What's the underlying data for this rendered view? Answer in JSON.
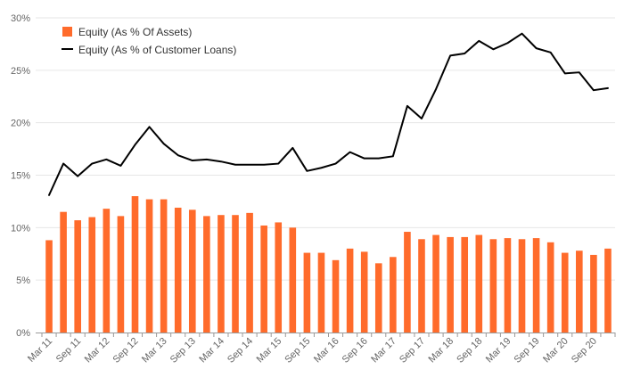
{
  "chart_data": {
    "type": "bar+line",
    "title": "",
    "xlabel": "",
    "ylabel": "",
    "ylim": [
      0,
      30
    ],
    "y_ticks": [
      "0%",
      "5%",
      "10%",
      "15%",
      "20%",
      "25%",
      "30%"
    ],
    "y_tick_values": [
      0,
      5,
      10,
      15,
      20,
      25,
      30
    ],
    "x_tick_labels": [
      "Mar 11",
      "Sep 11",
      "Mar 12",
      "Sep 12",
      "Mar 13",
      "Sep 13",
      "Mar 14",
      "Sep 14",
      "Mar 15",
      "Sep 15",
      "Mar 16",
      "Sep 16",
      "Mar 17",
      "Sep 17",
      "Mar 18",
      "Sep 18",
      "Mar 19",
      "Sep 19",
      "Mar 20",
      "Sep 20"
    ],
    "categories": [
      "Mar 11",
      "Jun 11",
      "Sep 11",
      "Dec 11",
      "Mar 12",
      "Jun 12",
      "Sep 12",
      "Dec 12",
      "Mar 13",
      "Jun 13",
      "Sep 13",
      "Dec 13",
      "Mar 14",
      "Jun 14",
      "Sep 14",
      "Dec 14",
      "Mar 15",
      "Jun 15",
      "Sep 15",
      "Dec 15",
      "Mar 16",
      "Jun 16",
      "Sep 16",
      "Dec 16",
      "Mar 17",
      "Jun 17",
      "Sep 17",
      "Dec 17",
      "Mar 18",
      "Jun 18",
      "Sep 18",
      "Dec 18",
      "Mar 19",
      "Jun 19",
      "Sep 19",
      "Dec 19",
      "Mar 20",
      "Jun 20",
      "Sep 20",
      "Dec 20"
    ],
    "grid": true,
    "legend": "top-left",
    "series": [
      {
        "name": "Equity (As % Of Assets)",
        "kind": "bar",
        "color": "#ff6b2b",
        "values": [
          8.8,
          11.5,
          10.7,
          11.0,
          11.8,
          11.1,
          13.0,
          12.7,
          12.7,
          11.9,
          11.7,
          11.1,
          11.2,
          11.2,
          11.4,
          10.2,
          10.5,
          10.0,
          7.6,
          7.6,
          6.9,
          8.0,
          7.7,
          6.6,
          7.2,
          9.6,
          8.9,
          9.3,
          9.1,
          9.1,
          9.3,
          8.9,
          9.0,
          8.9,
          9.0,
          8.6,
          7.6,
          7.8,
          7.4,
          8.0
        ]
      },
      {
        "name": "Equity (As % of Customer Loans)",
        "kind": "line",
        "color": "#000000",
        "values": [
          13.1,
          16.1,
          14.9,
          16.1,
          16.5,
          15.9,
          17.9,
          19.6,
          18.0,
          16.9,
          16.4,
          16.5,
          16.3,
          16.0,
          16.0,
          16.0,
          16.1,
          17.6,
          15.4,
          15.7,
          16.1,
          17.2,
          16.6,
          16.6,
          16.8,
          21.6,
          20.4,
          23.2,
          26.4,
          26.6,
          27.8,
          27.0,
          27.6,
          28.5,
          27.1,
          26.7,
          24.7,
          24.8,
          23.1,
          23.3
        ]
      }
    ]
  }
}
